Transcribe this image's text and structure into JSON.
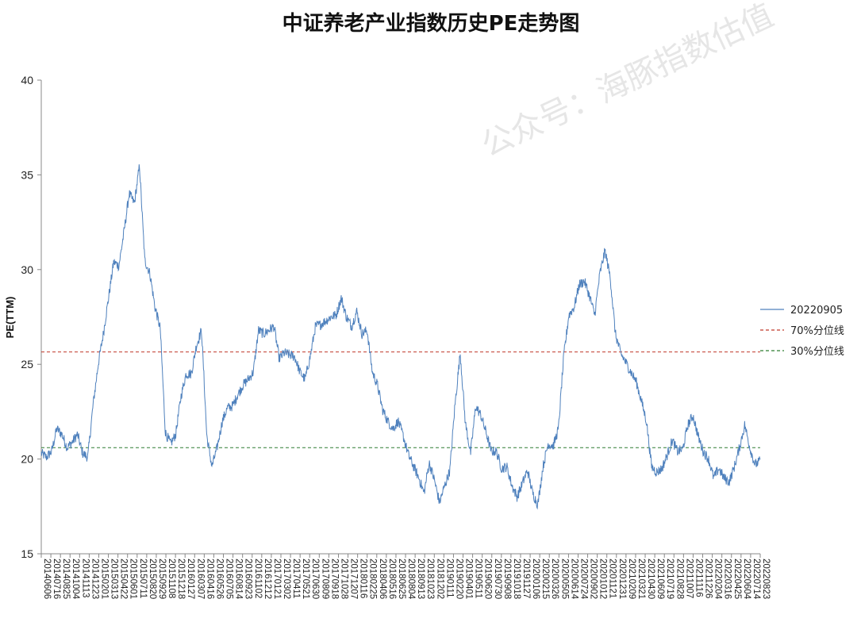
{
  "chart_data": {
    "type": "line",
    "title": "中证养老产业指数历史PE走势图",
    "xlabel": "",
    "ylabel": "PE(TTM)",
    "ylim": [
      15,
      40
    ],
    "yticks": [
      "15",
      "20",
      "25",
      "30",
      "35",
      "40"
    ],
    "legend_position": "right",
    "watermark": "公众号：海豚指数估值",
    "grid": false,
    "x_tick_labels": [
      "20140606",
      "20140716",
      "20140825",
      "20141004",
      "20141113",
      "20141223",
      "20150201",
      "20150313",
      "20150422",
      "20150601",
      "20150711",
      "20150820",
      "20150929",
      "20151108",
      "20151218",
      "20160127",
      "20160307",
      "20160416",
      "20160526",
      "20160705",
      "20160814",
      "20160923",
      "20161102",
      "20161212",
      "20170121",
      "20170302",
      "20170411",
      "20170521",
      "20170630",
      "20170809",
      "20170918",
      "20171028",
      "20171207",
      "20180116",
      "20180225",
      "20180406",
      "20180516",
      "20180625",
      "20180804",
      "20180913",
      "20181023",
      "20181202",
      "20190111",
      "20190220",
      "20190401",
      "20190511",
      "20190620",
      "20190730",
      "20190908",
      "20191018",
      "20191127",
      "20200106",
      "20200215",
      "20200326",
      "20200505",
      "20200614",
      "20200724",
      "20200902",
      "20201012",
      "20201121",
      "20201231",
      "20210209",
      "20210321",
      "20210430",
      "20210609",
      "20210719",
      "20210828",
      "20211007",
      "20211116",
      "20211226",
      "20220204",
      "20220316",
      "20220425",
      "20220604",
      "20220714",
      "20220823"
    ],
    "series": [
      {
        "name": "20220905",
        "color": "#4f81bd",
        "style": "solid",
        "values": [
          20.3,
          20.1,
          20.4,
          21.6,
          21.3,
          20.6,
          20.9,
          21.3,
          20.3,
          20.1,
          22.8,
          25.0,
          26.6,
          28.5,
          30.4,
          30.2,
          32.0,
          34.0,
          33.5,
          35.5,
          30.5,
          29.8,
          28.0,
          26.9,
          21.4,
          20.8,
          21.3,
          23.3,
          24.5,
          24.5,
          26.0,
          26.8,
          21.2,
          19.6,
          20.6,
          22.0,
          22.7,
          22.8,
          23.4,
          23.9,
          24.2,
          24.6,
          26.8,
          26.6,
          26.8,
          27.0,
          25.3,
          25.6,
          25.5,
          25.4,
          24.6,
          24.2,
          25.4,
          27.0,
          27.1,
          27.3,
          27.5,
          27.6,
          28.5,
          27.5,
          27.0,
          27.8,
          26.6,
          26.8,
          24.6,
          23.9,
          22.6,
          22.0,
          21.6,
          22.0,
          21.2,
          20.2,
          19.6,
          19.0,
          18.2,
          19.8,
          18.9,
          17.7,
          18.6,
          19.4,
          22.9,
          25.6,
          21.9,
          20.3,
          22.8,
          22.3,
          21.4,
          20.4,
          20.4,
          19.5,
          19.6,
          18.6,
          18.0,
          18.7,
          19.4,
          18.2,
          17.6,
          19.6,
          20.8,
          20.7,
          21.6,
          25.4,
          27.6,
          28.0,
          29.2,
          29.4,
          28.6,
          27.6,
          29.8,
          31.0,
          29.6,
          26.6,
          25.6,
          25.1,
          24.6,
          24.1,
          23.1,
          22.0,
          19.6,
          19.3,
          19.5,
          20.2,
          21.0,
          20.4,
          20.5,
          21.8,
          22.3,
          21.2,
          20.4,
          20.0,
          19.0,
          19.5,
          19.0,
          18.8,
          19.6,
          20.6,
          21.8,
          20.6,
          19.7,
          19.9
        ],
        "y_range_observed": [
          17.3,
          36.2
        ]
      },
      {
        "name": "70%分位线",
        "color": "#c0392b",
        "style": "dashed",
        "value": 25.65
      },
      {
        "name": "30%分位线",
        "color": "#2e7d32",
        "style": "dashed",
        "value": 20.6
      }
    ]
  }
}
